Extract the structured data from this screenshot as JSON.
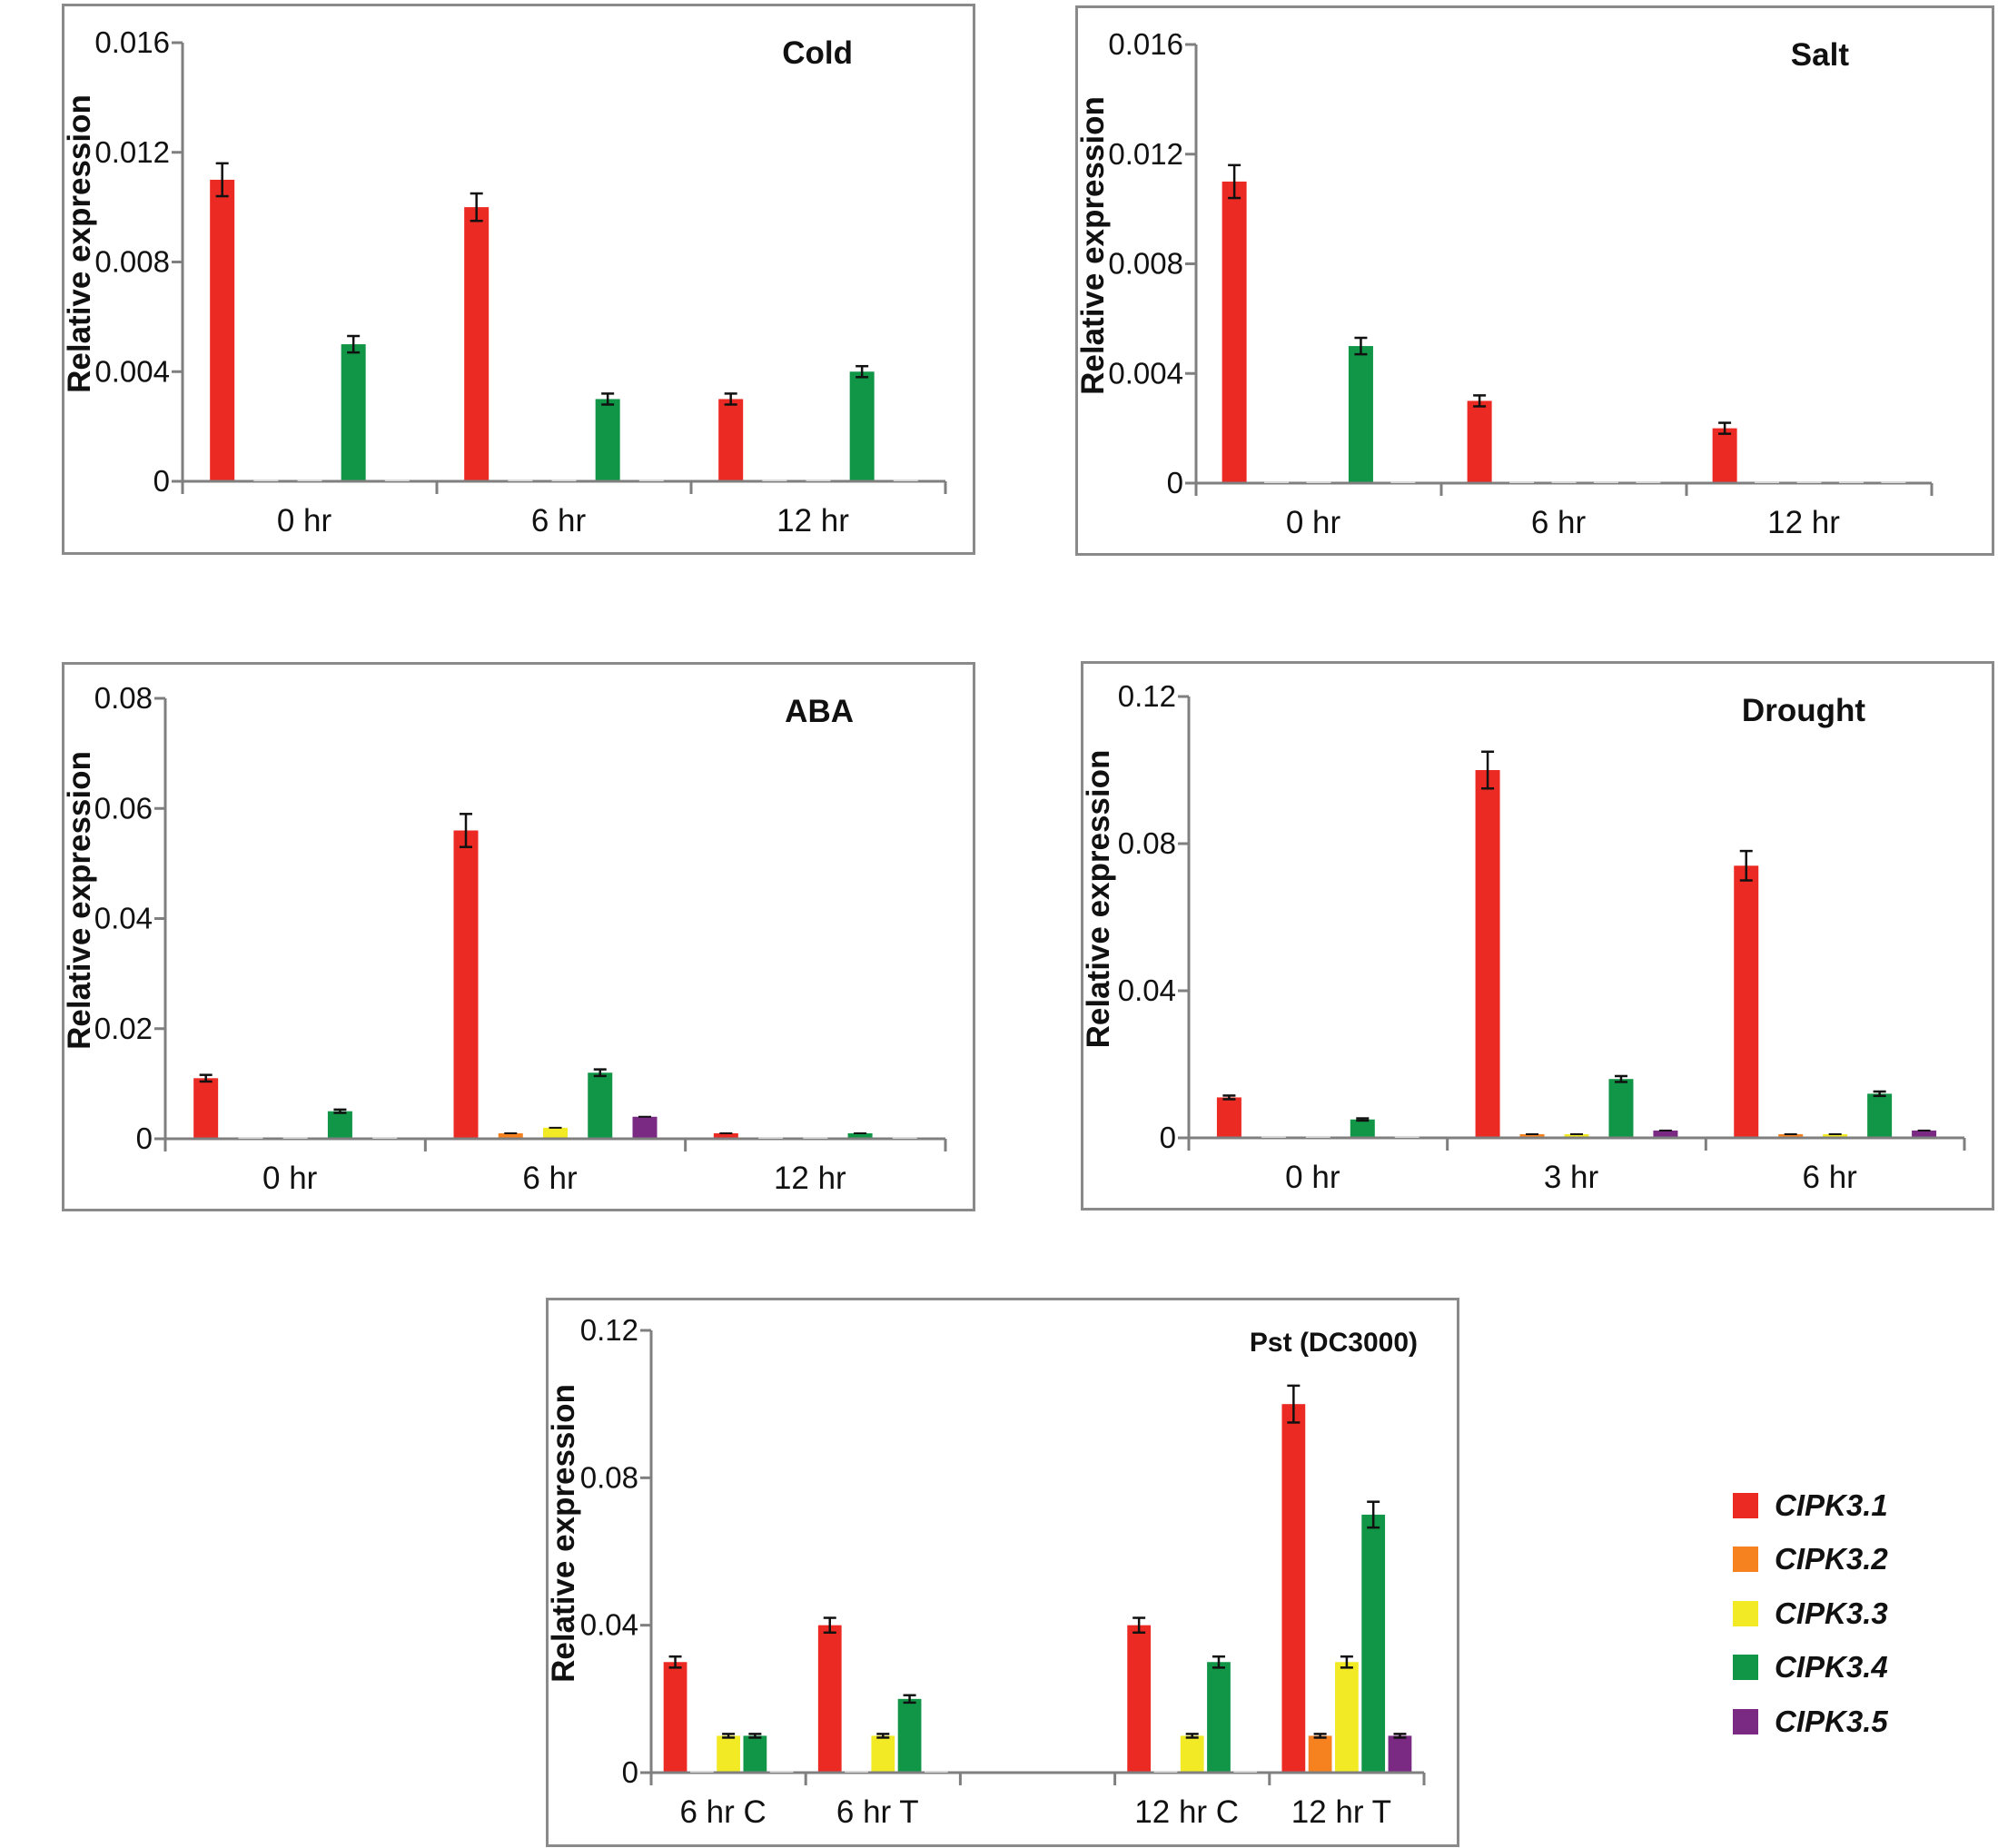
{
  "colors": {
    "series": [
      "#ec2a24",
      "#f5811f",
      "#f1ea24",
      "#119647",
      "#7a2a83"
    ],
    "axis": "#7f7f7f",
    "error_bar": "#111111"
  },
  "legend": {
    "items": [
      {
        "label": "CIPK3.1",
        "color": "#ec2a24"
      },
      {
        "label": "CIPK3.2",
        "color": "#f5811f"
      },
      {
        "label": "CIPK3.3",
        "color": "#f1ea24"
      },
      {
        "label": "CIPK3.4",
        "color": "#119647"
      },
      {
        "label": "CIPK3.5",
        "color": "#7a2a83"
      }
    ]
  },
  "chart_data": [
    {
      "type": "bar",
      "title": "Cold",
      "ylabel": "Relative expression",
      "xlabel": "",
      "ylim": [
        0,
        0.016
      ],
      "yticks": [
        "0",
        "0.004",
        "0.008",
        "0.012",
        "0.016"
      ],
      "categories": [
        "0 hr",
        "6 hr",
        "12 hr"
      ],
      "series": [
        {
          "name": "CIPK3.1",
          "values": [
            0.011,
            0.01,
            0.003
          ],
          "errors": [
            0.0006,
            0.0005,
            0.0002
          ]
        },
        {
          "name": "CIPK3.2",
          "values": [
            0,
            0,
            0
          ],
          "errors": [
            0,
            0,
            0
          ]
        },
        {
          "name": "CIPK3.3",
          "values": [
            0,
            0,
            0
          ],
          "errors": [
            0,
            0,
            0
          ]
        },
        {
          "name": "CIPK3.4",
          "values": [
            0.005,
            0.003,
            0.004
          ],
          "errors": [
            0.0003,
            0.0002,
            0.0002
          ]
        },
        {
          "name": "CIPK3.5",
          "values": [
            0,
            0,
            0
          ],
          "errors": [
            0,
            0,
            0
          ]
        }
      ]
    },
    {
      "type": "bar",
      "title": "Salt",
      "ylabel": "Relative expression",
      "xlabel": "",
      "ylim": [
        0,
        0.016
      ],
      "yticks": [
        "0",
        "0.004",
        "0.008",
        "0.012",
        "0.016"
      ],
      "categories": [
        "0 hr",
        "6 hr",
        "12 hr"
      ],
      "series": [
        {
          "name": "CIPK3.1",
          "values": [
            0.011,
            0.003,
            0.002
          ],
          "errors": [
            0.0006,
            0.0002,
            0.0002
          ]
        },
        {
          "name": "CIPK3.2",
          "values": [
            0,
            0,
            0
          ],
          "errors": [
            0,
            0,
            0
          ]
        },
        {
          "name": "CIPK3.3",
          "values": [
            0,
            0,
            0
          ],
          "errors": [
            0,
            0,
            0
          ]
        },
        {
          "name": "CIPK3.4",
          "values": [
            0.005,
            0,
            0
          ],
          "errors": [
            0.0003,
            0,
            0
          ]
        },
        {
          "name": "CIPK3.5",
          "values": [
            0,
            0,
            0
          ],
          "errors": [
            0,
            0,
            0
          ]
        }
      ]
    },
    {
      "type": "bar",
      "title": "ABA",
      "ylabel": "Relative expression",
      "xlabel": "",
      "ylim": [
        0,
        0.08
      ],
      "yticks": [
        "0",
        "0.02",
        "0.04",
        "0.06",
        "0.08"
      ],
      "categories": [
        "0 hr",
        "6 hr",
        "12 hr"
      ],
      "series": [
        {
          "name": "CIPK3.1",
          "values": [
            0.011,
            0.056,
            0.001
          ],
          "errors": [
            0.0006,
            0.003,
            0
          ]
        },
        {
          "name": "CIPK3.2",
          "values": [
            0,
            0.001,
            0
          ],
          "errors": [
            0,
            0,
            0
          ]
        },
        {
          "name": "CIPK3.3",
          "values": [
            0,
            0.002,
            0
          ],
          "errors": [
            0,
            0,
            0
          ]
        },
        {
          "name": "CIPK3.4",
          "values": [
            0.005,
            0.012,
            0.001
          ],
          "errors": [
            0.0003,
            0.0006,
            0
          ]
        },
        {
          "name": "CIPK3.5",
          "values": [
            0,
            0.004,
            0
          ],
          "errors": [
            0,
            0,
            0
          ]
        }
      ]
    },
    {
      "type": "bar",
      "title": "Drought",
      "ylabel": "Relative expression",
      "xlabel": "",
      "ylim": [
        0,
        0.12
      ],
      "yticks": [
        "0",
        "0.04",
        "0.08",
        "0.12"
      ],
      "categories": [
        "0 hr",
        "3 hr",
        "6 hr"
      ],
      "series": [
        {
          "name": "CIPK3.1",
          "values": [
            0.011,
            0.1,
            0.074
          ],
          "errors": [
            0.0005,
            0.005,
            0.004
          ]
        },
        {
          "name": "CIPK3.2",
          "values": [
            0,
            0.001,
            0.001
          ],
          "errors": [
            0,
            0,
            0
          ]
        },
        {
          "name": "CIPK3.3",
          "values": [
            0,
            0.001,
            0.001
          ],
          "errors": [
            0,
            0,
            0
          ]
        },
        {
          "name": "CIPK3.4",
          "values": [
            0.005,
            0.016,
            0.012
          ],
          "errors": [
            0.0003,
            0.0008,
            0.0006
          ]
        },
        {
          "name": "CIPK3.5",
          "values": [
            0,
            0.002,
            0.002
          ],
          "errors": [
            0,
            0,
            0
          ]
        }
      ]
    },
    {
      "type": "bar",
      "title": "Pst (DC3000)",
      "ylabel": "Relative expression",
      "xlabel": "",
      "ylim": [
        0,
        0.12
      ],
      "yticks": [
        "0",
        "0.04",
        "0.08",
        "0.12"
      ],
      "categories": [
        "6 hr C",
        "6 hr T",
        "",
        "12 hr C",
        "12 hr T"
      ],
      "series": [
        {
          "name": "CIPK3.1",
          "values": [
            0.03,
            0.04,
            0,
            0.04,
            0.1
          ],
          "errors": [
            0.0015,
            0.002,
            0,
            0.002,
            0.005
          ]
        },
        {
          "name": "CIPK3.2",
          "values": [
            0,
            0,
            0,
            0,
            0.01
          ],
          "errors": [
            0,
            0,
            0,
            0,
            0.0005
          ]
        },
        {
          "name": "CIPK3.3",
          "values": [
            0.01,
            0.01,
            0,
            0.01,
            0.03
          ],
          "errors": [
            0.0005,
            0.0005,
            0,
            0.0005,
            0.0015
          ]
        },
        {
          "name": "CIPK3.4",
          "values": [
            0.01,
            0.02,
            0,
            0.03,
            0.07
          ],
          "errors": [
            0.0005,
            0.001,
            0,
            0.0015,
            0.0035
          ]
        },
        {
          "name": "CIPK3.5",
          "values": [
            0,
            0,
            0,
            0,
            0.01
          ],
          "errors": [
            0,
            0,
            0,
            0,
            0.0005
          ]
        }
      ]
    }
  ]
}
